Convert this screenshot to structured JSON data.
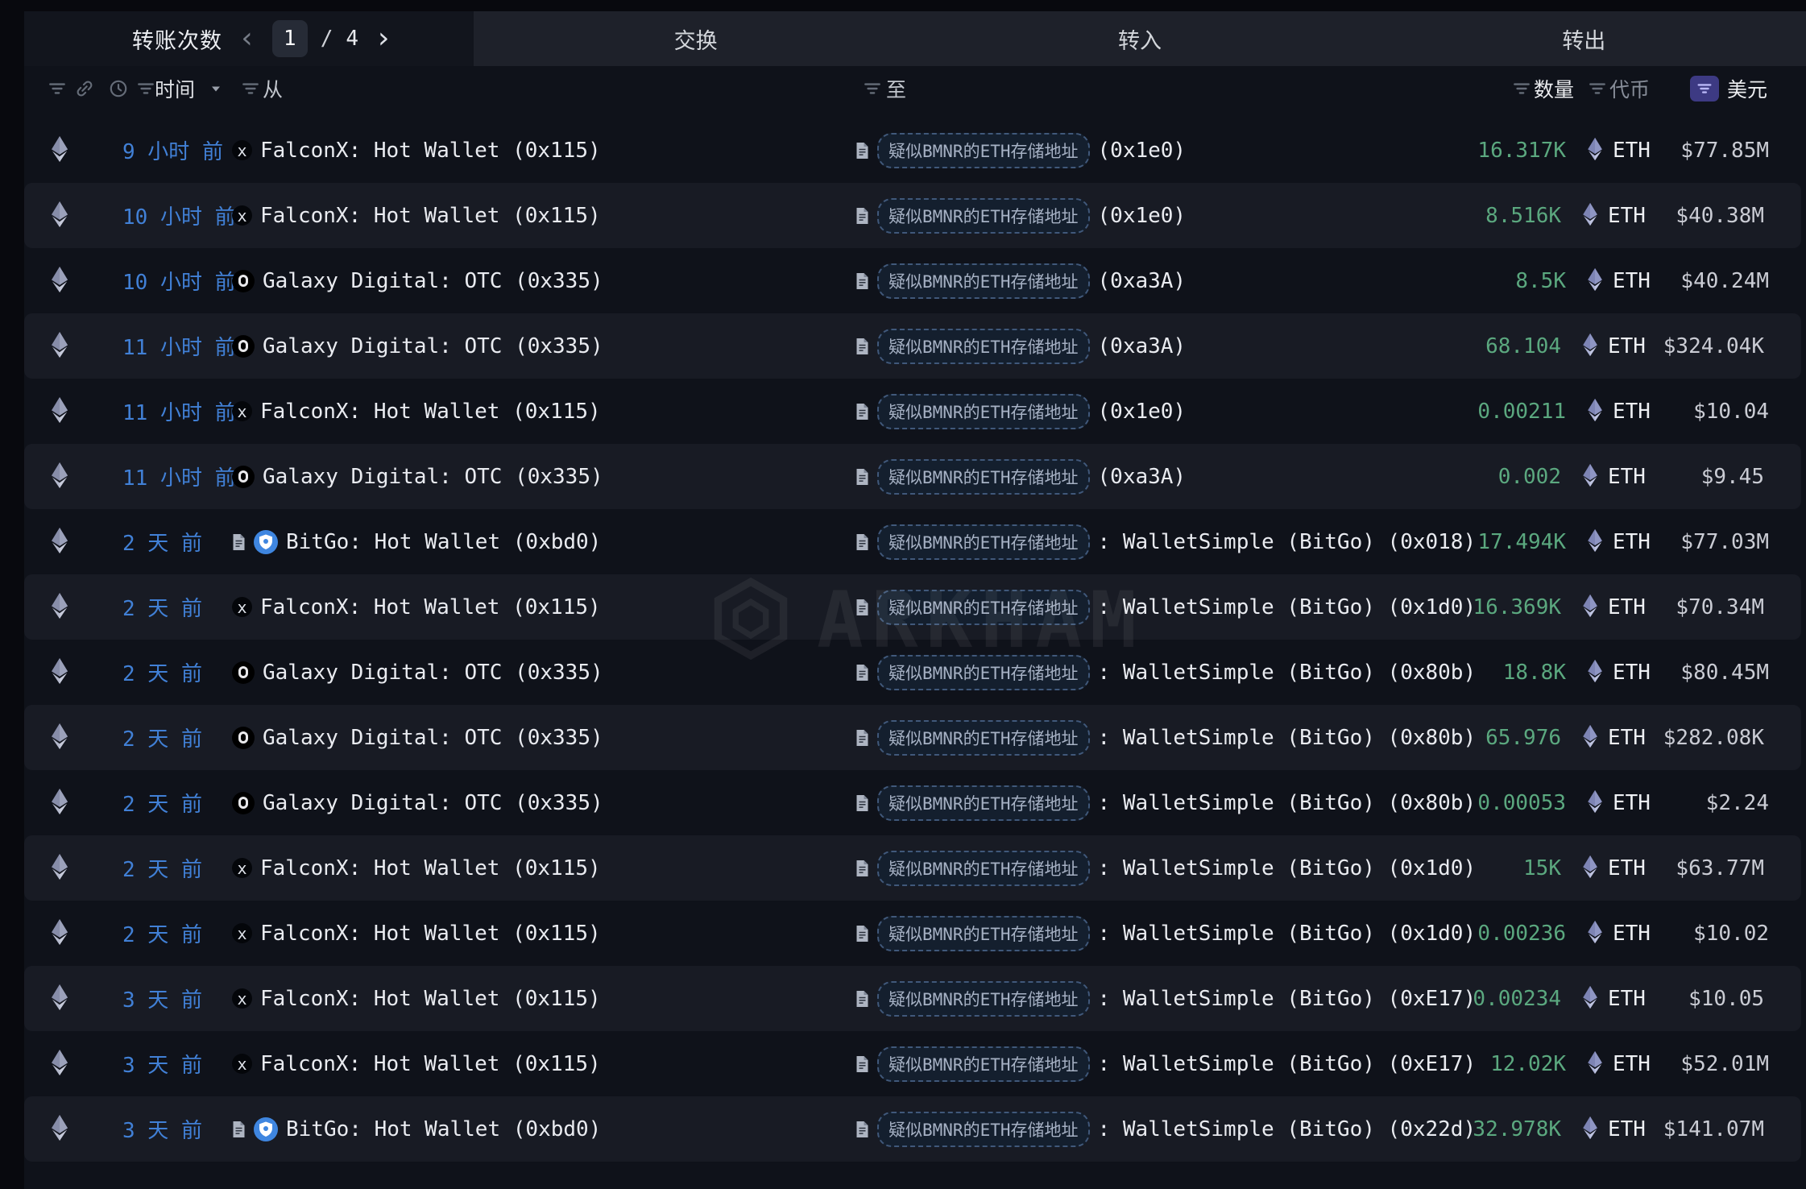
{
  "header": {
    "transfers_label": "转账次数",
    "page_current": "1",
    "page_separator": "/",
    "page_total": "4",
    "prev_icon": "‹",
    "next_icon": "›"
  },
  "tabs": [
    {
      "label": "交换"
    },
    {
      "label": "转入"
    },
    {
      "label": "转出"
    }
  ],
  "columns": {
    "time_label": "时间",
    "from_label": "从",
    "to_label": "至",
    "amount_label": "数量",
    "token_label": "代币",
    "usd_label": "美元"
  },
  "badge_text": "疑似BMNR的ETH存储地址",
  "watermark_text": "ARKHAM",
  "icons": {
    "falconx_glyph": "x"
  },
  "colors": {
    "time_blue": "#4180d6",
    "amount_green": "#5ba87f",
    "usd_filter_purple": "#8d8af2",
    "bitgo_blue": "#3f86e0",
    "row_alt": "#181b24",
    "tabstrip": "#1e212a"
  },
  "rows": [
    {
      "time": "9 小时 前",
      "from": "FalconX: Hot Wallet (0x115)",
      "from_icon": "falconx",
      "from_doc": false,
      "to_suffix": "(0x1e0)",
      "amount": "16.317K",
      "token": "ETH",
      "usd": "$77.85M"
    },
    {
      "time": "10 小时 前",
      "from": "FalconX: Hot Wallet (0x115)",
      "from_icon": "falconx",
      "from_doc": false,
      "to_suffix": "(0x1e0)",
      "amount": "8.516K",
      "token": "ETH",
      "usd": "$40.38M"
    },
    {
      "time": "10 小时 前",
      "from": "Galaxy Digital: OTC (0x335)",
      "from_icon": "galaxy",
      "from_doc": false,
      "to_suffix": "(0xa3A)",
      "amount": "8.5K",
      "token": "ETH",
      "usd": "$40.24M"
    },
    {
      "time": "11 小时 前",
      "from": "Galaxy Digital: OTC (0x335)",
      "from_icon": "galaxy",
      "from_doc": false,
      "to_suffix": "(0xa3A)",
      "amount": "68.104",
      "token": "ETH",
      "usd": "$324.04K"
    },
    {
      "time": "11 小时 前",
      "from": "FalconX: Hot Wallet (0x115)",
      "from_icon": "falconx",
      "from_doc": false,
      "to_suffix": "(0x1e0)",
      "amount": "0.00211",
      "token": "ETH",
      "usd": "$10.04"
    },
    {
      "time": "11 小时 前",
      "from": "Galaxy Digital: OTC (0x335)",
      "from_icon": "galaxy",
      "from_doc": false,
      "to_suffix": "(0xa3A)",
      "amount": "0.002",
      "token": "ETH",
      "usd": "$9.45"
    },
    {
      "time": "2 天 前",
      "from": "BitGo: Hot Wallet (0xbd0)",
      "from_icon": "bitgo",
      "from_doc": true,
      "to_suffix": ": WalletSimple (BitGo) (0x018)",
      "amount": "17.494K",
      "token": "ETH",
      "usd": "$77.03M"
    },
    {
      "time": "2 天 前",
      "from": "FalconX: Hot Wallet (0x115)",
      "from_icon": "falconx",
      "from_doc": false,
      "to_suffix": ": WalletSimple (BitGo) (0x1d0)",
      "amount": "16.369K",
      "token": "ETH",
      "usd": "$70.34M"
    },
    {
      "time": "2 天 前",
      "from": "Galaxy Digital: OTC (0x335)",
      "from_icon": "galaxy",
      "from_doc": false,
      "to_suffix": ": WalletSimple (BitGo) (0x80b)",
      "amount": "18.8K",
      "token": "ETH",
      "usd": "$80.45M"
    },
    {
      "time": "2 天 前",
      "from": "Galaxy Digital: OTC (0x335)",
      "from_icon": "galaxy",
      "from_doc": false,
      "to_suffix": ": WalletSimple (BitGo) (0x80b)",
      "amount": "65.976",
      "token": "ETH",
      "usd": "$282.08K"
    },
    {
      "time": "2 天 前",
      "from": "Galaxy Digital: OTC (0x335)",
      "from_icon": "galaxy",
      "from_doc": false,
      "to_suffix": ": WalletSimple (BitGo) (0x80b)",
      "amount": "0.00053",
      "token": "ETH",
      "usd": "$2.24"
    },
    {
      "time": "2 天 前",
      "from": "FalconX: Hot Wallet (0x115)",
      "from_icon": "falconx",
      "from_doc": false,
      "to_suffix": ": WalletSimple (BitGo) (0x1d0)",
      "amount": "15K",
      "token": "ETH",
      "usd": "$63.77M"
    },
    {
      "time": "2 天 前",
      "from": "FalconX: Hot Wallet (0x115)",
      "from_icon": "falconx",
      "from_doc": false,
      "to_suffix": ": WalletSimple (BitGo) (0x1d0)",
      "amount": "0.00236",
      "token": "ETH",
      "usd": "$10.02"
    },
    {
      "time": "3 天 前",
      "from": "FalconX: Hot Wallet (0x115)",
      "from_icon": "falconx",
      "from_doc": false,
      "to_suffix": ": WalletSimple (BitGo) (0xE17)",
      "amount": "0.00234",
      "token": "ETH",
      "usd": "$10.05"
    },
    {
      "time": "3 天 前",
      "from": "FalconX: Hot Wallet (0x115)",
      "from_icon": "falconx",
      "from_doc": false,
      "to_suffix": ": WalletSimple (BitGo) (0xE17)",
      "amount": "12.02K",
      "token": "ETH",
      "usd": "$52.01M"
    },
    {
      "time": "3 天 前",
      "from": "BitGo: Hot Wallet (0xbd0)",
      "from_icon": "bitgo",
      "from_doc": true,
      "to_suffix": ": WalletSimple (BitGo) (0x22d)",
      "amount": "32.978K",
      "token": "ETH",
      "usd": "$141.07M"
    }
  ]
}
